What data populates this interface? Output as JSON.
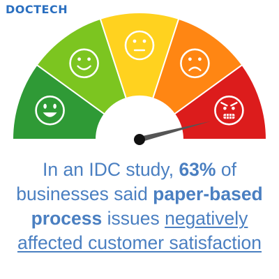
{
  "logo": {
    "text": "DOCTECH"
  },
  "gauge": {
    "sections": [
      {
        "color": "#2f9a36",
        "face": "very-happy-face-icon"
      },
      {
        "color": "#7cc520",
        "face": "smiling-face-icon"
      },
      {
        "color": "#ffd21f",
        "face": "neutral-face-icon"
      },
      {
        "color": "#ff8613",
        "face": "frowning-face-icon"
      },
      {
        "color": "#dc1c1c",
        "face": "angry-face-icon"
      }
    ],
    "needle_value": 0.92,
    "needle_color": "#555555",
    "hub_color": "#111111"
  },
  "caption": {
    "part1": "In an IDC study, ",
    "stat": "63%",
    "part2": " of businesses said ",
    "bold_phrase": "paper-based process",
    "part3": " issues ",
    "underline_phrase": "negatively affected customer satisfaction"
  },
  "colors": {
    "text": "#4a7fc1",
    "logo": "#2a6fc0"
  }
}
